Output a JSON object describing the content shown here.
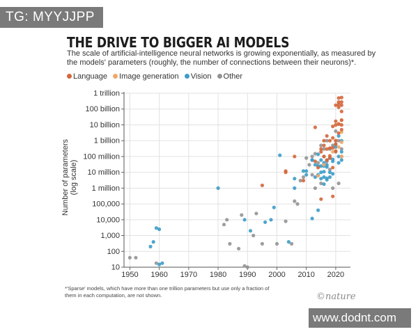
{
  "watermark_top": "TG: MYYJJPP",
  "watermark_bottom": "www.dodnt.com",
  "brand": "©nature",
  "footnote": "*'Sparse' models, which have more than one trillion parameters but use only a fraction of them in each computation, are not shown.",
  "chart_data": {
    "type": "scatter",
    "title": "THE DRIVE TO BIGGER AI MODELS",
    "subtitle": "The scale of artificial-intelligence neural networks is growing exponentially, as measured by the models' parameters (roughly, the number of connections between their neurons)*.",
    "xlabel": "",
    "ylabel": "Number of parameters (log scale)",
    "xlim": [
      1948,
      2025
    ],
    "ylim": [
      10,
      1000000000000
    ],
    "yscale": "log",
    "x_ticks": [
      1950,
      1960,
      1970,
      1980,
      1990,
      2000,
      2010,
      2020
    ],
    "y_ticks": [
      {
        "value": 10,
        "label": "10"
      },
      {
        "value": 100,
        "label": "100"
      },
      {
        "value": 1000,
        "label": "1,000"
      },
      {
        "value": 10000,
        "label": "10,000"
      },
      {
        "value": 100000,
        "label": "100,000"
      },
      {
        "value": 1000000,
        "label": "1 million"
      },
      {
        "value": 10000000,
        "label": "10 million"
      },
      {
        "value": 100000000,
        "label": "100 million"
      },
      {
        "value": 1000000000,
        "label": "1 billion"
      },
      {
        "value": 10000000000,
        "label": "10 billion"
      },
      {
        "value": 100000000000,
        "label": "100 billion"
      },
      {
        "value": 1000000000000,
        "label": "1 trillion"
      }
    ],
    "grid": true,
    "legend_position": "top-left",
    "series": [
      {
        "name": "Language",
        "color": "#d4663a",
        "points": [
          [
            1995,
            1500000
          ],
          [
            2003,
            10000000
          ],
          [
            2003,
            12000000
          ],
          [
            2006,
            100000000
          ],
          [
            2009,
            3000000
          ],
          [
            2013,
            7000000000
          ],
          [
            2013,
            50000000
          ],
          [
            2014,
            20000000
          ],
          [
            2015,
            300000000
          ],
          [
            2015,
            200000000
          ],
          [
            2016,
            1000000000
          ],
          [
            2016,
            500000000
          ],
          [
            2016,
            100000000
          ],
          [
            2017,
            2000000000
          ],
          [
            2017,
            300000000
          ],
          [
            2017,
            60000000
          ],
          [
            2018,
            1000000000
          ],
          [
            2018,
            340000000
          ],
          [
            2018,
            110000000
          ],
          [
            2018,
            80000000
          ],
          [
            2019,
            1500000000
          ],
          [
            2019,
            8000000000
          ],
          [
            2019,
            350000000
          ],
          [
            2019,
            20000000
          ],
          [
            2019,
            300000
          ],
          [
            2020,
            10000000000
          ],
          [
            2020,
            17000000000
          ],
          [
            2020,
            175000000000
          ],
          [
            2020,
            1000000000
          ],
          [
            2020,
            600000000
          ],
          [
            2020,
            220000000
          ],
          [
            2021,
            200000000000
          ],
          [
            2021,
            280000000000
          ],
          [
            2021,
            11000000000
          ],
          [
            2021,
            500000000000
          ],
          [
            2021,
            130000000000
          ],
          [
            2021,
            3000000000
          ],
          [
            2022,
            540000000000
          ],
          [
            2022,
            70000000000
          ],
          [
            2022,
            175000000000
          ],
          [
            2022,
            20000000000
          ],
          [
            2022,
            280000000000
          ],
          [
            2022,
            10000000000
          ],
          [
            2022,
            5000000000
          ],
          [
            2015,
            200000
          ]
        ]
      },
      {
        "name": "Image generation",
        "color": "#f0a86a",
        "points": [
          [
            2014,
            6000000
          ],
          [
            2016,
            30000000
          ],
          [
            2019,
            200000000
          ],
          [
            2020,
            1000000000
          ],
          [
            2021,
            12000000000
          ],
          [
            2021,
            400000000
          ],
          [
            2022,
            3500000000
          ],
          [
            2022,
            20000000000
          ],
          [
            2022,
            800000000
          ],
          [
            2022,
            100000000
          ]
        ]
      },
      {
        "name": "Vision",
        "color": "#3c9cc8",
        "points": [
          [
            1957,
            200
          ],
          [
            1958,
            400
          ],
          [
            1959,
            3000
          ],
          [
            1960,
            2500
          ],
          [
            1960,
            15
          ],
          [
            1961,
            18
          ],
          [
            1980,
            1000000
          ],
          [
            1989,
            10000
          ],
          [
            1991,
            2000
          ],
          [
            1996,
            7000
          ],
          [
            1998,
            10000
          ],
          [
            1999,
            60000
          ],
          [
            2001,
            120000000
          ],
          [
            2004,
            400
          ],
          [
            2006,
            4000000
          ],
          [
            2006,
            1000000
          ],
          [
            2009,
            12000000
          ],
          [
            2010,
            7000000
          ],
          [
            2010,
            12000000
          ],
          [
            2012,
            60000000
          ],
          [
            2012,
            60000000
          ],
          [
            2012,
            12000
          ],
          [
            2013,
            5000000
          ],
          [
            2013,
            30000000
          ],
          [
            2014,
            140000000
          ],
          [
            2014,
            7000000
          ],
          [
            2014,
            40000
          ],
          [
            2014,
            25000000
          ],
          [
            2015,
            25000000
          ],
          [
            2015,
            60000000
          ],
          [
            2015,
            10000000
          ],
          [
            2015,
            4000000
          ],
          [
            2016,
            25000000
          ],
          [
            2016,
            11000000
          ],
          [
            2016,
            5000000
          ],
          [
            2016,
            1800000
          ],
          [
            2016,
            40000000
          ],
          [
            2017,
            3400000
          ],
          [
            2017,
            22000000
          ],
          [
            2017,
            4200000
          ],
          [
            2017,
            60000000
          ],
          [
            2017,
            30000000
          ],
          [
            2018,
            80000000
          ],
          [
            2018,
            5000000
          ],
          [
            2018,
            10000000
          ],
          [
            2019,
            50000000
          ],
          [
            2019,
            8000000
          ],
          [
            2019,
            66000000
          ],
          [
            2020,
            400000000
          ],
          [
            2020,
            600000000
          ],
          [
            2021,
            100000000
          ],
          [
            2021,
            2000000000
          ],
          [
            2021,
            40000000
          ],
          [
            2022,
            200000000
          ],
          [
            2022,
            1000000000
          ],
          [
            2022,
            60000000
          ]
        ]
      },
      {
        "name": "Other",
        "color": "#939393",
        "points": [
          [
            1950,
            40
          ],
          [
            1952,
            40
          ],
          [
            1959,
            18
          ],
          [
            1982,
            5000
          ],
          [
            1983,
            10000
          ],
          [
            1984,
            300
          ],
          [
            1987,
            150
          ],
          [
            1988,
            20000
          ],
          [
            1989,
            12
          ],
          [
            1990,
            10
          ],
          [
            1992,
            1000
          ],
          [
            1993,
            25000
          ],
          [
            1995,
            300
          ],
          [
            2000,
            300
          ],
          [
            2003,
            8000
          ],
          [
            2005,
            300
          ],
          [
            2006,
            150000
          ],
          [
            2007,
            100000
          ],
          [
            2008,
            3000000
          ],
          [
            2009,
            5000000
          ],
          [
            2010,
            80000000
          ],
          [
            2011,
            30000000
          ],
          [
            2012,
            100000000
          ],
          [
            2012,
            7000000
          ],
          [
            2013,
            150000000
          ],
          [
            2013,
            1000000
          ],
          [
            2014,
            40000000
          ],
          [
            2015,
            500000000
          ],
          [
            2015,
            2000000
          ],
          [
            2016,
            300000000
          ],
          [
            2016,
            100000000
          ],
          [
            2017,
            1000000000
          ],
          [
            2017,
            50000000
          ],
          [
            2018,
            300000000
          ],
          [
            2018,
            15000000
          ],
          [
            2019,
            500000000
          ],
          [
            2019,
            1000000
          ],
          [
            2020,
            200000000
          ],
          [
            2020,
            4000000000
          ],
          [
            2021,
            1000000000
          ],
          [
            2021,
            2000000
          ],
          [
            2022,
            100000000
          ],
          [
            2022,
            300000000
          ]
        ]
      }
    ]
  }
}
